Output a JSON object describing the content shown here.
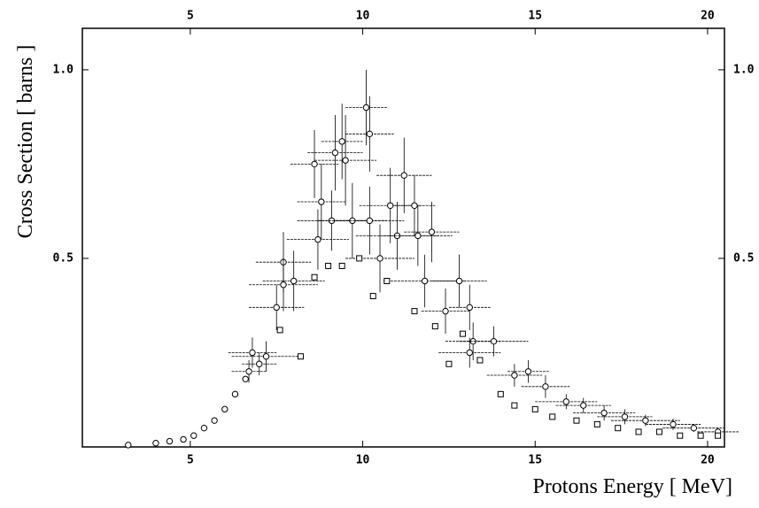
{
  "chart_data": {
    "type": "scatter",
    "xlabel": "Protons Energy [ MeV]",
    "ylabel": "Cross Section [ barns ]",
    "xlim": [
      1.87,
      20.49
    ],
    "ylim": [
      0,
      1.11
    ],
    "xticks": [
      5,
      10,
      15,
      20
    ],
    "x2ticks": [
      5,
      10,
      15,
      20
    ],
    "yticks": [
      0.5,
      {
        "value": 1,
        "label": "1.0"
      }
    ],
    "y2ticks": [
      0.5,
      {
        "value": 1,
        "label": "1.0"
      }
    ],
    "grid": false,
    "series": [
      {
        "marker": "circle",
        "color": "#000000",
        "x": [
          3.2,
          4.0,
          4.4,
          4.8,
          5.1,
          5.4,
          5.7,
          6.0,
          6.3,
          6.6,
          6.7,
          6.8,
          7.0,
          7.2,
          7.5,
          7.7,
          7.7,
          8.0,
          8.6,
          8.7,
          8.8,
          9.1,
          9.2,
          9.4,
          9.5,
          9.7,
          10.1,
          10.2,
          10.2,
          10.5,
          10.8,
          11.0,
          11.2,
          11.5,
          11.6,
          11.8,
          12.0,
          12.4,
          12.8,
          13.1,
          13.2,
          13.8,
          13.1,
          14.4,
          14.8,
          15.3,
          15.9,
          16.4,
          17.0,
          17.6,
          18.2,
          19.0,
          19.6,
          20.3
        ],
        "values": [
          0.005,
          0.01,
          0.015,
          0.02,
          0.03,
          0.05,
          0.07,
          0.1,
          0.14,
          0.18,
          0.2,
          0.25,
          0.22,
          0.24,
          0.37,
          0.49,
          0.43,
          0.44,
          0.75,
          0.55,
          0.65,
          0.6,
          0.78,
          0.81,
          0.76,
          0.6,
          0.9,
          0.83,
          0.6,
          0.5,
          0.64,
          0.56,
          0.72,
          0.64,
          0.56,
          0.44,
          0.57,
          0.36,
          0.44,
          0.37,
          0.28,
          0.28,
          0.25,
          0.19,
          0.2,
          0.16,
          0.12,
          0.11,
          0.09,
          0.08,
          0.07,
          0.06,
          0.05,
          0.04
        ],
        "xerr": [
          0,
          0,
          0,
          0,
          0,
          0,
          0,
          0,
          0,
          0,
          0.5,
          0.7,
          0.5,
          1.0,
          0.8,
          0.8,
          1.0,
          0.9,
          0.7,
          0.9,
          0.7,
          1.0,
          0.8,
          0.6,
          0.9,
          1.0,
          0.6,
          0.7,
          1.0,
          1.0,
          0.9,
          1.2,
          0.8,
          0.6,
          1.0,
          1.2,
          0.8,
          0.7,
          0.8,
          0.6,
          0.8,
          1.0,
          0.9,
          0.8,
          0.6,
          0.7,
          0.9,
          0.8,
          0.9,
          0.8,
          1.0,
          0.8,
          0.9,
          0.6
        ],
        "yerr": [
          0,
          0,
          0,
          0,
          0,
          0,
          0,
          0,
          0,
          0,
          0.03,
          0.04,
          0.03,
          0.04,
          0.06,
          0.08,
          0.07,
          0.08,
          0.09,
          0.08,
          0.1,
          0.08,
          0.1,
          0.1,
          0.12,
          0.1,
          0.1,
          0.1,
          0.09,
          0.09,
          0.1,
          0.09,
          0.1,
          0.08,
          0.08,
          0.07,
          0.08,
          0.06,
          0.07,
          0.06,
          0.05,
          0.04,
          0.04,
          0.03,
          0.03,
          0.03,
          0.02,
          0.02,
          0.02,
          0.02,
          0.015,
          0.015,
          0.01,
          0.01
        ]
      },
      {
        "marker": "square",
        "color": "#000000",
        "x": [
          7.6,
          8.2,
          8.6,
          9.0,
          9.4,
          9.9,
          10.3,
          10.7,
          11.5,
          12.1,
          12.5,
          12.9,
          13.4,
          14.0,
          14.4,
          15.0,
          15.5,
          16.2,
          16.8,
          17.4,
          18.0,
          18.6,
          19.2,
          19.8,
          20.3
        ],
        "values": [
          0.31,
          0.24,
          0.45,
          0.48,
          0.48,
          0.5,
          0.4,
          0.44,
          0.36,
          0.32,
          0.22,
          0.3,
          0.23,
          0.14,
          0.11,
          0.1,
          0.08,
          0.07,
          0.06,
          0.05,
          0.04,
          0.04,
          0.03,
          0.03,
          0.03
        ]
      }
    ]
  }
}
